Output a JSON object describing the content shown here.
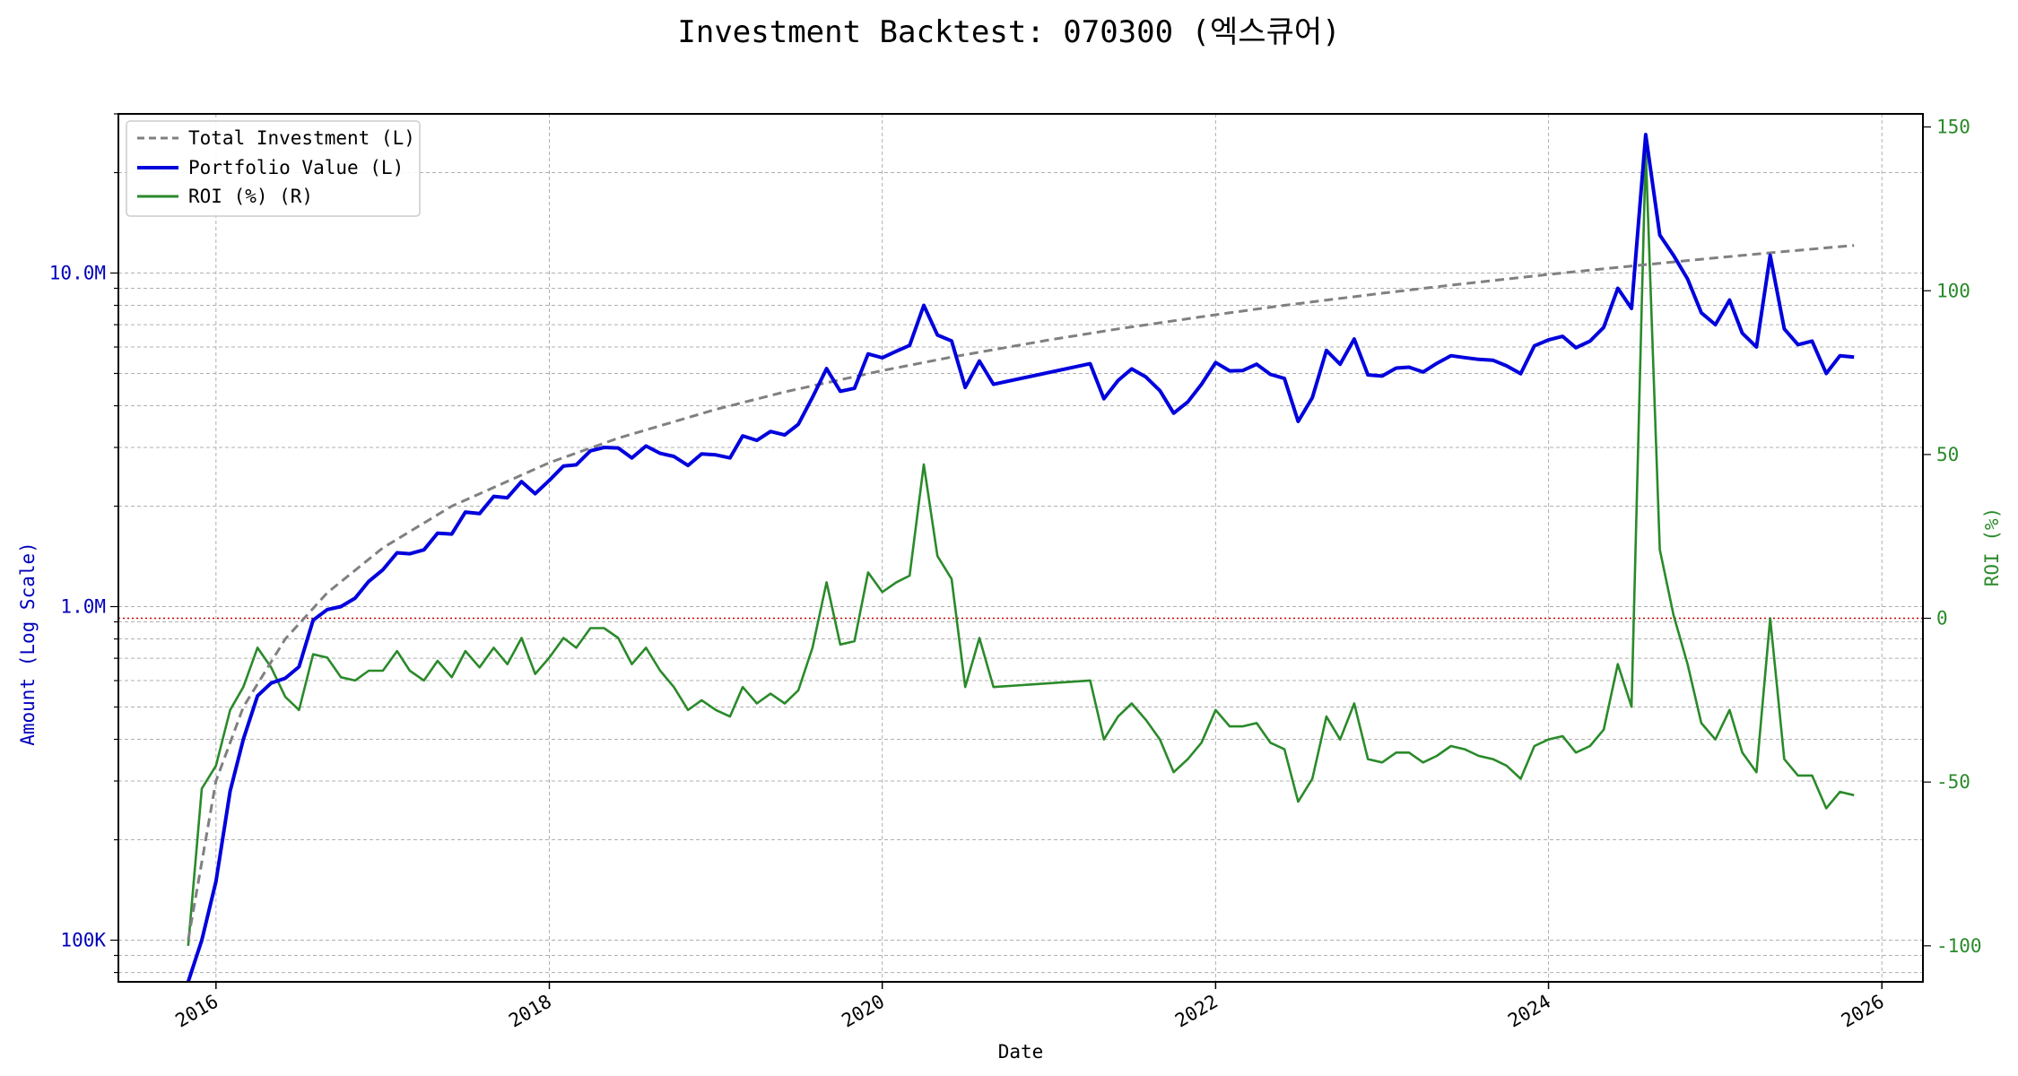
{
  "chart_data": {
    "type": "line",
    "title": "Investment Backtest: 070300 (엑스큐어)",
    "xlabel": "Date",
    "ylabel_left": "Amount (Log Scale)",
    "ylabel_right": "ROI (%)",
    "y_left_scale": "log",
    "y_left_range": [
      75000,
      30000000
    ],
    "y_right_range": [
      -111,
      154
    ],
    "x_range": [
      "2015-06-01",
      "2026-04-01"
    ],
    "x_ticks": [
      {
        "date": "2016-01-01",
        "label": "2016"
      },
      {
        "date": "2018-01-01",
        "label": "2018"
      },
      {
        "date": "2020-01-01",
        "label": "2020"
      },
      {
        "date": "2022-01-01",
        "label": "2022"
      },
      {
        "date": "2024-01-01",
        "label": "2024"
      },
      {
        "date": "2026-01-01",
        "label": "2026"
      }
    ],
    "y_left_ticks": [
      {
        "value": 100000,
        "label": "100K"
      },
      {
        "value": 1000000,
        "label": "1.0M"
      },
      {
        "value": 10000000,
        "label": "10.0M"
      }
    ],
    "y_right_ticks": [
      {
        "value": 150,
        "label": "150"
      },
      {
        "value": 100,
        "label": "100"
      },
      {
        "value": 50,
        "label": "50"
      },
      {
        "value": 0,
        "label": "0"
      },
      {
        "value": -50,
        "label": "-50"
      },
      {
        "value": -100,
        "label": "-100"
      }
    ],
    "grid": true,
    "legend_position": "top-left",
    "reference_line": {
      "axis": "right",
      "value": 0,
      "color": "#cc0000",
      "style": "dotted"
    },
    "colors": {
      "total_investment": "#808080",
      "portfolio_value": "#0000dd",
      "roi": "#2a8a2a",
      "left_axis": "#0000bb",
      "right_axis": "#2a8a2a"
    },
    "series": [
      {
        "name": "Total Investment (L)",
        "axis": "left",
        "style": "dashed",
        "points": [
          [
            "2015-11-01",
            100000
          ],
          [
            "2016-01-01",
            300000
          ],
          [
            "2016-03-01",
            500000
          ],
          [
            "2016-06-01",
            800000
          ],
          [
            "2016-09-01",
            1100000
          ],
          [
            "2017-01-01",
            1500000
          ],
          [
            "2017-06-01",
            2000000
          ],
          [
            "2018-01-01",
            2700000
          ],
          [
            "2018-06-01",
            3200000
          ],
          [
            "2019-01-01",
            3900000
          ],
          [
            "2019-06-01",
            4400000
          ],
          [
            "2020-01-01",
            5100000
          ],
          [
            "2020-06-01",
            5600000
          ],
          [
            "2021-01-01",
            6300000
          ],
          [
            "2021-06-01",
            6800000
          ],
          [
            "2022-01-01",
            7500000
          ],
          [
            "2022-06-01",
            8000000
          ],
          [
            "2023-01-01",
            8700000
          ],
          [
            "2023-06-01",
            9200000
          ],
          [
            "2024-01-01",
            9900000
          ],
          [
            "2024-06-01",
            10400000
          ],
          [
            "2025-01-01",
            11100000
          ],
          [
            "2025-06-01",
            11600000
          ],
          [
            "2025-11-01",
            12100000
          ]
        ]
      },
      {
        "name": "Portfolio Value (L)",
        "axis": "left",
        "style": "solid",
        "points": [
          [
            "2015-11-01",
            75000
          ],
          [
            "2015-12-01",
            100000
          ],
          [
            "2016-01-01",
            150000
          ],
          [
            "2016-02-01",
            280000
          ],
          [
            "2016-03-01",
            400000
          ],
          [
            "2016-04-01",
            540000
          ],
          [
            "2016-05-01",
            590000
          ],
          [
            "2016-06-01",
            610000
          ],
          [
            "2016-07-01",
            660000
          ],
          [
            "2016-08-01",
            910000
          ],
          [
            "2016-09-01",
            980000
          ],
          [
            "2016-10-01",
            1000000
          ],
          [
            "2016-11-01",
            1060000
          ],
          [
            "2016-12-01",
            1190000
          ],
          [
            "2017-01-01",
            1290000
          ],
          [
            "2017-02-01",
            1450000
          ],
          [
            "2017-03-01",
            1440000
          ],
          [
            "2017-04-01",
            1480000
          ],
          [
            "2017-05-01",
            1660000
          ],
          [
            "2017-06-01",
            1650000
          ],
          [
            "2017-07-01",
            1920000
          ],
          [
            "2017-08-01",
            1900000
          ],
          [
            "2017-09-01",
            2140000
          ],
          [
            "2017-10-01",
            2120000
          ],
          [
            "2017-11-01",
            2370000
          ],
          [
            "2017-12-01",
            2180000
          ],
          [
            "2018-01-01",
            2390000
          ],
          [
            "2018-02-01",
            2640000
          ],
          [
            "2018-03-01",
            2660000
          ],
          [
            "2018-04-01",
            2930000
          ],
          [
            "2018-05-01",
            3000000
          ],
          [
            "2018-06-01",
            2990000
          ],
          [
            "2018-07-01",
            2790000
          ],
          [
            "2018-08-01",
            3030000
          ],
          [
            "2018-09-01",
            2880000
          ],
          [
            "2018-10-01",
            2820000
          ],
          [
            "2018-11-01",
            2650000
          ],
          [
            "2018-12-01",
            2870000
          ],
          [
            "2019-01-01",
            2850000
          ],
          [
            "2019-02-01",
            2790000
          ],
          [
            "2019-03-01",
            3250000
          ],
          [
            "2019-04-01",
            3150000
          ],
          [
            "2019-05-01",
            3350000
          ],
          [
            "2019-06-01",
            3270000
          ],
          [
            "2019-07-01",
            3520000
          ],
          [
            "2019-08-01",
            4240000
          ],
          [
            "2019-09-01",
            5170000
          ],
          [
            "2019-10-01",
            4420000
          ],
          [
            "2019-11-01",
            4510000
          ],
          [
            "2019-12-01",
            5720000
          ],
          [
            "2020-01-01",
            5570000
          ],
          [
            "2020-02-01",
            5830000
          ],
          [
            "2020-03-01",
            6070000
          ],
          [
            "2020-04-01",
            8000000
          ],
          [
            "2020-05-01",
            6520000
          ],
          [
            "2020-06-01",
            6260000
          ],
          [
            "2020-07-01",
            4540000
          ],
          [
            "2020-08-01",
            5450000
          ],
          [
            "2020-09-01",
            4640000
          ],
          [
            "2021-04-01",
            5350000
          ],
          [
            "2021-05-01",
            4200000
          ],
          [
            "2021-06-01",
            4760000
          ],
          [
            "2021-07-01",
            5160000
          ],
          [
            "2021-08-01",
            4880000
          ],
          [
            "2021-09-01",
            4440000
          ],
          [
            "2021-10-01",
            3800000
          ],
          [
            "2021-11-01",
            4110000
          ],
          [
            "2021-12-01",
            4640000
          ],
          [
            "2022-01-01",
            5390000
          ],
          [
            "2022-02-01",
            5090000
          ],
          [
            "2022-03-01",
            5100000
          ],
          [
            "2022-04-01",
            5330000
          ],
          [
            "2022-05-01",
            4970000
          ],
          [
            "2022-06-01",
            4830000
          ],
          [
            "2022-07-01",
            3590000
          ],
          [
            "2022-08-01",
            4230000
          ],
          [
            "2022-09-01",
            5860000
          ],
          [
            "2022-10-01",
            5330000
          ],
          [
            "2022-11-01",
            6340000
          ],
          [
            "2022-12-01",
            4950000
          ],
          [
            "2023-01-01",
            4910000
          ],
          [
            "2023-02-01",
            5190000
          ],
          [
            "2023-03-01",
            5220000
          ],
          [
            "2023-04-01",
            5050000
          ],
          [
            "2023-05-01",
            5360000
          ],
          [
            "2023-06-01",
            5650000
          ],
          [
            "2023-07-01",
            5580000
          ],
          [
            "2023-08-01",
            5510000
          ],
          [
            "2023-09-01",
            5480000
          ],
          [
            "2023-10-01",
            5270000
          ],
          [
            "2023-11-01",
            4990000
          ],
          [
            "2023-12-01",
            6050000
          ],
          [
            "2024-01-01",
            6300000
          ],
          [
            "2024-02-01",
            6460000
          ],
          [
            "2024-03-01",
            5970000
          ],
          [
            "2024-04-01",
            6250000
          ],
          [
            "2024-05-01",
            6870000
          ],
          [
            "2024-06-01",
            9000000
          ],
          [
            "2024-07-01",
            7830000
          ],
          [
            "2024-08-01",
            26000000
          ],
          [
            "2024-09-01",
            13000000
          ],
          [
            "2024-10-01",
            11300000
          ],
          [
            "2024-11-01",
            9600000
          ],
          [
            "2024-12-01",
            7600000
          ],
          [
            "2025-01-01",
            7000000
          ],
          [
            "2025-02-01",
            8300000
          ],
          [
            "2025-03-01",
            6600000
          ],
          [
            "2025-04-01",
            6000000
          ],
          [
            "2025-05-01",
            11300000
          ],
          [
            "2025-06-01",
            6800000
          ],
          [
            "2025-07-01",
            6100000
          ],
          [
            "2025-08-01",
            6250000
          ],
          [
            "2025-09-01",
            5000000
          ],
          [
            "2025-10-01",
            5650000
          ],
          [
            "2025-11-01",
            5600000
          ]
        ]
      },
      {
        "name": "ROI (%) (R)",
        "axis": "right",
        "style": "solid",
        "points": [
          [
            "2015-11-01",
            -100
          ],
          [
            "2015-12-01",
            -52
          ],
          [
            "2016-01-01",
            -45
          ],
          [
            "2016-02-01",
            -28
          ],
          [
            "2016-03-01",
            -21
          ],
          [
            "2016-04-01",
            -9
          ],
          [
            "2016-05-01",
            -15
          ],
          [
            "2016-06-01",
            -24
          ],
          [
            "2016-07-01",
            -28
          ],
          [
            "2016-08-01",
            -11
          ],
          [
            "2016-09-01",
            -12
          ],
          [
            "2016-10-01",
            -18
          ],
          [
            "2016-11-01",
            -19
          ],
          [
            "2016-12-01",
            -16
          ],
          [
            "2017-01-01",
            -16
          ],
          [
            "2017-02-01",
            -10
          ],
          [
            "2017-03-01",
            -16
          ],
          [
            "2017-04-01",
            -19
          ],
          [
            "2017-05-01",
            -13
          ],
          [
            "2017-06-01",
            -18
          ],
          [
            "2017-07-01",
            -10
          ],
          [
            "2017-08-01",
            -15
          ],
          [
            "2017-09-01",
            -9
          ],
          [
            "2017-10-01",
            -14
          ],
          [
            "2017-11-01",
            -6
          ],
          [
            "2017-12-01",
            -17
          ],
          [
            "2018-01-01",
            -12
          ],
          [
            "2018-02-01",
            -6
          ],
          [
            "2018-03-01",
            -9
          ],
          [
            "2018-04-01",
            -3
          ],
          [
            "2018-05-01",
            -3
          ],
          [
            "2018-06-01",
            -6
          ],
          [
            "2018-07-01",
            -14
          ],
          [
            "2018-08-01",
            -9
          ],
          [
            "2018-09-01",
            -16
          ],
          [
            "2018-10-01",
            -21
          ],
          [
            "2018-11-01",
            -28
          ],
          [
            "2018-12-01",
            -25
          ],
          [
            "2019-01-01",
            -28
          ],
          [
            "2019-02-01",
            -30
          ],
          [
            "2019-03-01",
            -21
          ],
          [
            "2019-04-01",
            -26
          ],
          [
            "2019-05-01",
            -23
          ],
          [
            "2019-06-01",
            -26
          ],
          [
            "2019-07-01",
            -22
          ],
          [
            "2019-08-01",
            -9
          ],
          [
            "2019-09-01",
            11
          ],
          [
            "2019-10-01",
            -8
          ],
          [
            "2019-11-01",
            -7
          ],
          [
            "2019-12-01",
            14
          ],
          [
            "2020-01-01",
            8
          ],
          [
            "2020-02-01",
            11
          ],
          [
            "2020-03-01",
            13
          ],
          [
            "2020-04-01",
            47
          ],
          [
            "2020-05-01",
            19
          ],
          [
            "2020-06-01",
            12
          ],
          [
            "2020-07-01",
            -21
          ],
          [
            "2020-08-01",
            -6
          ],
          [
            "2020-09-01",
            -21
          ],
          [
            "2021-04-01",
            -19
          ],
          [
            "2021-05-01",
            -37
          ],
          [
            "2021-06-01",
            -30
          ],
          [
            "2021-07-01",
            -26
          ],
          [
            "2021-08-01",
            -31
          ],
          [
            "2021-09-01",
            -37
          ],
          [
            "2021-10-01",
            -47
          ],
          [
            "2021-11-01",
            -43
          ],
          [
            "2021-12-01",
            -38
          ],
          [
            "2022-01-01",
            -28
          ],
          [
            "2022-02-01",
            -33
          ],
          [
            "2022-03-01",
            -33
          ],
          [
            "2022-04-01",
            -32
          ],
          [
            "2022-05-01",
            -38
          ],
          [
            "2022-06-01",
            -40
          ],
          [
            "2022-07-01",
            -56
          ],
          [
            "2022-08-01",
            -49
          ],
          [
            "2022-09-01",
            -30
          ],
          [
            "2022-10-01",
            -37
          ],
          [
            "2022-11-01",
            -26
          ],
          [
            "2022-12-01",
            -43
          ],
          [
            "2023-01-01",
            -44
          ],
          [
            "2023-02-01",
            -41
          ],
          [
            "2023-03-01",
            -41
          ],
          [
            "2023-04-01",
            -44
          ],
          [
            "2023-05-01",
            -42
          ],
          [
            "2023-06-01",
            -39
          ],
          [
            "2023-07-01",
            -40
          ],
          [
            "2023-08-01",
            -42
          ],
          [
            "2023-09-01",
            -43
          ],
          [
            "2023-10-01",
            -45
          ],
          [
            "2023-11-01",
            -49
          ],
          [
            "2023-12-01",
            -39
          ],
          [
            "2024-01-01",
            -37
          ],
          [
            "2024-02-01",
            -36
          ],
          [
            "2024-03-01",
            -41
          ],
          [
            "2024-04-01",
            -39
          ],
          [
            "2024-05-01",
            -34
          ],
          [
            "2024-06-01",
            -14
          ],
          [
            "2024-07-01",
            -27
          ],
          [
            "2024-08-01",
            143
          ],
          [
            "2024-09-01",
            21
          ],
          [
            "2024-10-01",
            1
          ],
          [
            "2024-11-01",
            -14
          ],
          [
            "2024-12-01",
            -32
          ],
          [
            "2025-01-01",
            -37
          ],
          [
            "2025-02-01",
            -28
          ],
          [
            "2025-03-01",
            -41
          ],
          [
            "2025-04-01",
            -47
          ],
          [
            "2025-05-01",
            0
          ],
          [
            "2025-06-01",
            -43
          ],
          [
            "2025-07-01",
            -48
          ],
          [
            "2025-08-01",
            -48
          ],
          [
            "2025-09-01",
            -58
          ],
          [
            "2025-10-01",
            -53
          ],
          [
            "2025-11-01",
            -54
          ]
        ]
      }
    ]
  }
}
